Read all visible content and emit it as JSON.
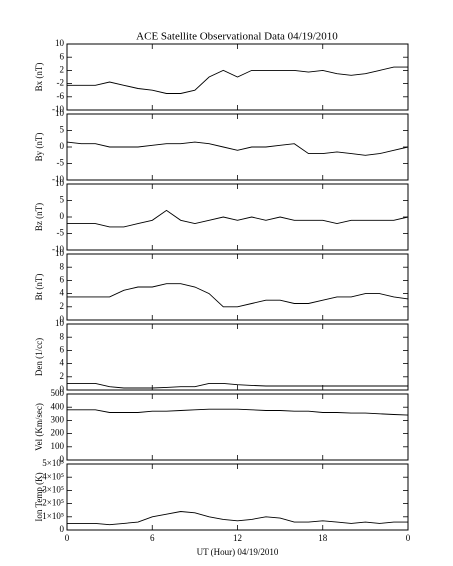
{
  "title": "ACE Satellite Observational Data   04/19/2010",
  "chart_data": [
    {
      "type": "line",
      "ylabel": "Bx (nT)",
      "color": "#000000",
      "xlim": [
        0,
        24
      ],
      "ylim": [
        -10,
        10
      ],
      "yticks": [
        -10,
        -6,
        -2,
        2,
        6,
        10
      ],
      "x": [
        0,
        1,
        2,
        3,
        4,
        5,
        6,
        7,
        8,
        9,
        10,
        11,
        12,
        13,
        14,
        15,
        16,
        17,
        18,
        19,
        20,
        21,
        22,
        23,
        24
      ],
      "values": [
        -2.5,
        -2.5,
        -2.5,
        -1.5,
        -2.5,
        -3.5,
        -4,
        -5,
        -5,
        -4,
        0,
        2,
        0,
        2,
        2,
        2,
        2,
        1.5,
        2,
        1,
        0.5,
        1,
        2,
        3,
        3
      ]
    },
    {
      "type": "line",
      "ylabel": "By (nT)",
      "color": "#000000",
      "xlim": [
        0,
        24
      ],
      "ylim": [
        -10,
        10
      ],
      "yticks": [
        -10,
        -5,
        0,
        5,
        10
      ],
      "x": [
        0,
        1,
        2,
        3,
        4,
        5,
        6,
        7,
        8,
        9,
        10,
        11,
        12,
        13,
        14,
        15,
        16,
        17,
        18,
        19,
        20,
        21,
        22,
        23,
        24
      ],
      "values": [
        1.5,
        1,
        1,
        0,
        0,
        0,
        0.5,
        1,
        1,
        1.5,
        1,
        0,
        -1,
        0,
        0,
        0.5,
        1,
        -2,
        -2,
        -1.5,
        -2,
        -2.5,
        -2,
        -1,
        0
      ]
    },
    {
      "type": "line",
      "ylabel": "Bz (nT)",
      "color": "#000000",
      "xlim": [
        0,
        24
      ],
      "ylim": [
        -10,
        10
      ],
      "yticks": [
        -10,
        -5,
        0,
        5,
        10
      ],
      "x": [
        0,
        1,
        2,
        3,
        4,
        5,
        6,
        7,
        8,
        9,
        10,
        11,
        12,
        13,
        14,
        15,
        16,
        17,
        18,
        19,
        20,
        21,
        22,
        23,
        24
      ],
      "values": [
        -2,
        -2,
        -2,
        -3,
        -3,
        -2,
        -1,
        2,
        -1,
        -2,
        -1,
        0,
        -1,
        0,
        -1,
        0,
        -1,
        -1,
        -1,
        -2,
        -1,
        -1,
        -1,
        -1,
        0
      ]
    },
    {
      "type": "line",
      "ylabel": "Bt (nT)",
      "color": "#000000",
      "xlim": [
        0,
        24
      ],
      "ylim": [
        0,
        10
      ],
      "yticks": [
        0,
        2,
        4,
        6,
        8,
        10
      ],
      "x": [
        0,
        1,
        2,
        3,
        4,
        5,
        6,
        7,
        8,
        9,
        10,
        11,
        12,
        13,
        14,
        15,
        16,
        17,
        18,
        19,
        20,
        21,
        22,
        23,
        24
      ],
      "values": [
        3.5,
        3.5,
        3.5,
        3.5,
        4.5,
        5,
        5,
        5.5,
        5.5,
        5,
        4,
        2,
        2,
        2.5,
        3,
        3,
        2.5,
        2.5,
        3,
        3.5,
        3.5,
        4,
        4,
        3.5,
        3.2
      ]
    },
    {
      "type": "line",
      "ylabel": "Den (1/cc)",
      "color": "#000000",
      "xlim": [
        0,
        24
      ],
      "ylim": [
        0,
        10
      ],
      "yticks": [
        0,
        2,
        4,
        6,
        8,
        10
      ],
      "x": [
        0,
        1,
        2,
        3,
        4,
        5,
        6,
        7,
        8,
        9,
        10,
        11,
        12,
        13,
        14,
        15,
        16,
        17,
        18,
        19,
        20,
        21,
        22,
        23,
        24
      ],
      "values": [
        1,
        1,
        1,
        0.5,
        0.3,
        0.3,
        0.3,
        0.4,
        0.5,
        0.5,
        1,
        1,
        0.8,
        0.7,
        0.6,
        0.6,
        0.6,
        0.6,
        0.6,
        0.6,
        0.6,
        0.6,
        0.6,
        0.6,
        0.6
      ]
    },
    {
      "type": "line",
      "ylabel": "Vel (Km/sec)",
      "color": "#000000",
      "xlim": [
        0,
        24
      ],
      "ylim": [
        0,
        500
      ],
      "yticks": [
        0,
        100,
        200,
        300,
        400,
        500
      ],
      "x": [
        0,
        1,
        2,
        3,
        4,
        5,
        6,
        7,
        8,
        9,
        10,
        11,
        12,
        13,
        14,
        15,
        16,
        17,
        18,
        19,
        20,
        21,
        22,
        23,
        24
      ],
      "values": [
        380,
        380,
        380,
        360,
        360,
        360,
        370,
        370,
        375,
        380,
        385,
        385,
        385,
        380,
        375,
        375,
        370,
        370,
        360,
        360,
        355,
        355,
        350,
        345,
        340
      ]
    },
    {
      "type": "line",
      "ylabel": "Ion Temp (K)",
      "color": "#000000",
      "xlim": [
        0,
        24
      ],
      "ylim": [
        0,
        500000
      ],
      "yticks": [
        0,
        {
          "value": 100000,
          "label": "1×10⁵"
        },
        {
          "value": 200000,
          "label": "2×10⁵"
        },
        {
          "value": 300000,
          "label": "3×10⁵"
        },
        {
          "value": 400000,
          "label": "4×10⁵"
        },
        {
          "value": 500000,
          "label": "5×10⁵"
        }
      ],
      "xlabel": "UT (Hour)  04/19/2010",
      "xticks": [
        0,
        6,
        12,
        18,
        {
          "value": 24,
          "label": "0"
        }
      ],
      "x": [
        0,
        1,
        2,
        3,
        4,
        5,
        6,
        7,
        8,
        9,
        10,
        11,
        12,
        13,
        14,
        15,
        16,
        17,
        18,
        19,
        20,
        21,
        22,
        23,
        24
      ],
      "values": [
        50000,
        50000,
        50000,
        40000,
        50000,
        60000,
        100000,
        120000,
        140000,
        130000,
        100000,
        80000,
        70000,
        80000,
        100000,
        90000,
        60000,
        60000,
        70000,
        60000,
        50000,
        60000,
        50000,
        60000,
        60000
      ]
    }
  ]
}
